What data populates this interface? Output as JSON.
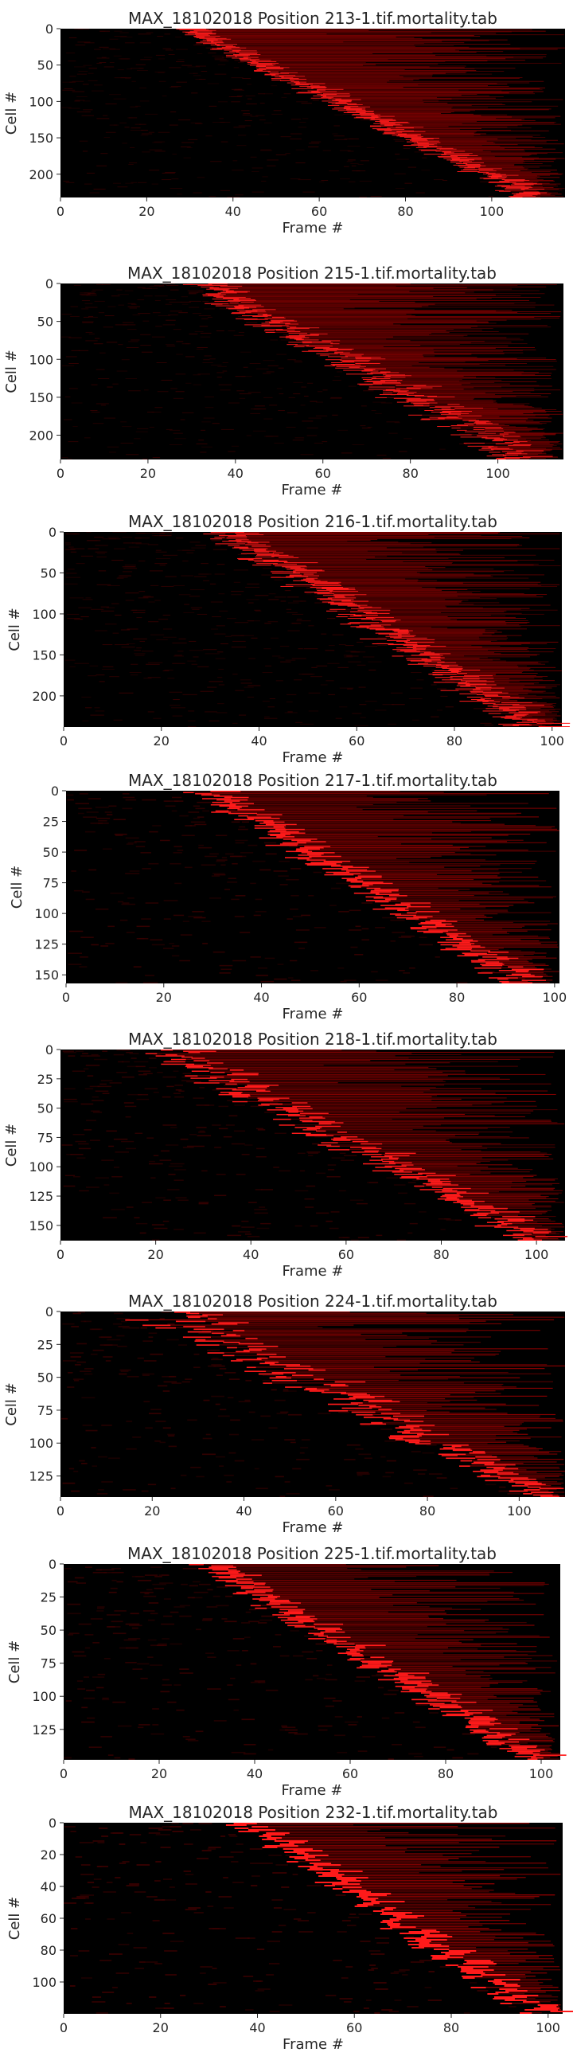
{
  "chart_data": [
    {
      "type": "heatmap",
      "title": "MAX_18102018 Position 213-1.tif.mortality.tab",
      "xlabel": "Frame #",
      "ylabel": "Cell #",
      "xlim": [
        0,
        117
      ],
      "ylim": [
        0,
        232
      ],
      "xticks": [
        0,
        20,
        40,
        60,
        80,
        100
      ],
      "yticks": [
        0,
        50,
        100,
        150,
        200
      ],
      "onset_start": [
        26,
        29
      ],
      "onset_end": [
        104,
        111
      ],
      "colors": {
        "background": "#000000",
        "low": "#3a0000",
        "mid": "#9a0000",
        "high": "#ff1a1a"
      }
    },
    {
      "type": "heatmap",
      "title": "MAX_18102018 Position 215-1.tif.mortality.tab",
      "xlabel": "Frame #",
      "ylabel": "Cell #",
      "xlim": [
        0,
        115
      ],
      "ylim": [
        0,
        232
      ],
      "xticks": [
        0,
        20,
        40,
        60,
        80,
        100
      ],
      "yticks": [
        0,
        50,
        100,
        150,
        200
      ],
      "onset_start": [
        26,
        35
      ],
      "onset_end": [
        98,
        112
      ],
      "colors": {
        "background": "#000000",
        "low": "#3a0000",
        "mid": "#9a0000",
        "high": "#ff1a1a"
      }
    },
    {
      "type": "heatmap",
      "title": "MAX_18102018 Position 216-1.tif.mortality.tab",
      "xlabel": "Frame #",
      "ylabel": "Cell #",
      "xlim": [
        0,
        102
      ],
      "ylim": [
        0,
        238
      ],
      "xticks": [
        0,
        20,
        40,
        60,
        80,
        100
      ],
      "yticks": [
        0,
        50,
        100,
        150,
        200
      ],
      "onset_start": [
        28,
        36
      ],
      "onset_end": [
        90,
        98
      ],
      "colors": {
        "background": "#000000",
        "low": "#3a0000",
        "mid": "#9a0000",
        "high": "#ff1a1a"
      }
    },
    {
      "type": "heatmap",
      "title": "MAX_18102018 Position 217-1.tif.mortality.tab",
      "xlabel": "Frame #",
      "ylabel": "Cell #",
      "xlim": [
        0,
        101
      ],
      "ylim": [
        0,
        157
      ],
      "xticks": [
        0,
        20,
        40,
        60,
        80,
        100
      ],
      "yticks": [
        0,
        25,
        50,
        75,
        100,
        125,
        150
      ],
      "onset_start": [
        24,
        30
      ],
      "onset_end": [
        88,
        96
      ],
      "colors": {
        "background": "#000000",
        "low": "#3a0000",
        "mid": "#9a0000",
        "high": "#ff1a1a"
      }
    },
    {
      "type": "heatmap",
      "title": "MAX_18102018 Position 218-1.tif.mortality.tab",
      "xlabel": "Frame #",
      "ylabel": "Cell #",
      "xlim": [
        0,
        106
      ],
      "ylim": [
        0,
        163
      ],
      "xticks": [
        0,
        20,
        40,
        60,
        80,
        100
      ],
      "yticks": [
        0,
        25,
        50,
        75,
        100,
        125,
        150
      ],
      "onset_start": [
        14,
        28
      ],
      "onset_end": [
        94,
        102
      ],
      "colors": {
        "background": "#000000",
        "low": "#3a0000",
        "mid": "#9a0000",
        "high": "#ff1a1a"
      }
    },
    {
      "type": "heatmap",
      "title": "MAX_18102018 Position 224-1.tif.mortality.tab",
      "xlabel": "Frame #",
      "ylabel": "Cell #",
      "xlim": [
        0,
        110
      ],
      "ylim": [
        0,
        141
      ],
      "xticks": [
        0,
        20,
        40,
        60,
        80,
        100
      ],
      "yticks": [
        0,
        25,
        50,
        75,
        100,
        125
      ],
      "onset_start": [
        10,
        30
      ],
      "onset_end": [
        100,
        108
      ],
      "colors": {
        "background": "#000000",
        "low": "#3a0000",
        "mid": "#9a0000",
        "high": "#ff1a1a"
      }
    },
    {
      "type": "heatmap",
      "title": "MAX_18102018 Position 225-1.tif.mortality.tab",
      "xlabel": "Frame #",
      "ylabel": "Cell #",
      "xlim": [
        0,
        104
      ],
      "ylim": [
        0,
        148
      ],
      "xticks": [
        0,
        20,
        40,
        60,
        80,
        100
      ],
      "yticks": [
        0,
        25,
        50,
        75,
        100,
        125
      ],
      "onset_start": [
        26,
        32
      ],
      "onset_end": [
        94,
        100
      ],
      "colors": {
        "background": "#000000",
        "low": "#3a0000",
        "mid": "#9a0000",
        "high": "#ff1a1a"
      }
    },
    {
      "type": "heatmap",
      "title": "MAX_18102018 Position 232-1.tif.mortality.tab",
      "xlabel": "Frame #",
      "ylabel": "Cell #",
      "xlim": [
        0,
        103
      ],
      "ylim": [
        0,
        120
      ],
      "xticks": [
        0,
        20,
        40,
        60,
        80,
        100
      ],
      "yticks": [
        0,
        20,
        40,
        60,
        80,
        100
      ],
      "onset_start": [
        34,
        40
      ],
      "onset_end": [
        92,
        100
      ],
      "colors": {
        "background": "#000000",
        "low": "#3a0000",
        "mid": "#9a0000",
        "high": "#ff1a1a"
      }
    }
  ]
}
